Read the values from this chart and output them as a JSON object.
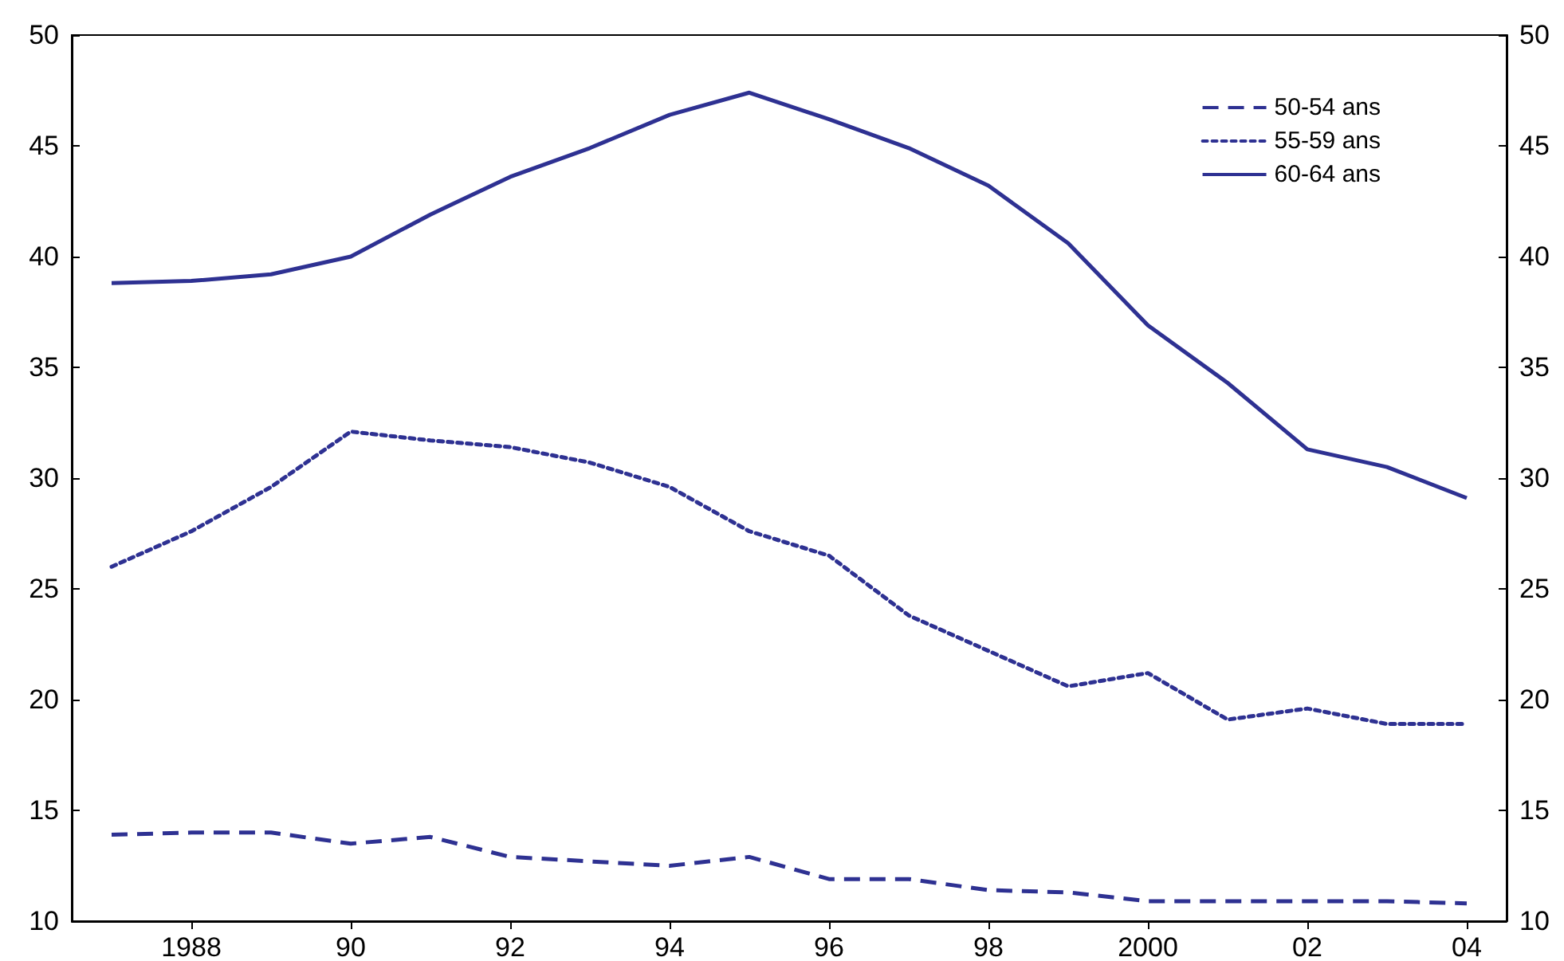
{
  "chart_data": {
    "type": "line",
    "x": [
      1987,
      1988,
      1989,
      1990,
      1991,
      1992,
      1993,
      1994,
      1995,
      1996,
      1997,
      1998,
      1999,
      2000,
      2001,
      2002,
      2003,
      2004
    ],
    "series": [
      {
        "name": "50-54 ans",
        "color": "#2e3192",
        "line_style": "dashed",
        "values": [
          13.9,
          14.0,
          14.0,
          13.5,
          13.8,
          12.9,
          12.7,
          12.5,
          12.9,
          11.9,
          11.9,
          11.4,
          11.3,
          10.9,
          10.9,
          10.9,
          10.9,
          10.8
        ]
      },
      {
        "name": "55-59 ans",
        "color": "#2e3192",
        "line_style": "dotted",
        "values": [
          26.0,
          27.6,
          29.6,
          32.1,
          31.7,
          31.4,
          30.7,
          29.6,
          27.6,
          26.5,
          23.8,
          22.2,
          20.6,
          21.2,
          19.1,
          19.6,
          18.9,
          18.9
        ]
      },
      {
        "name": "60-64 ans",
        "color": "#2e3192",
        "line_style": "solid",
        "values": [
          38.8,
          38.9,
          39.2,
          40.0,
          41.9,
          43.6,
          44.9,
          46.4,
          47.4,
          46.2,
          44.9,
          43.2,
          40.6,
          36.9,
          34.3,
          31.3,
          30.5,
          29.1
        ]
      }
    ],
    "xlim": [
      1986.5,
      2004.5
    ],
    "xticks": [
      {
        "value": 1988,
        "label": "1988"
      },
      {
        "value": 1990,
        "label": "90"
      },
      {
        "value": 1992,
        "label": "92"
      },
      {
        "value": 1994,
        "label": "94"
      },
      {
        "value": 1996,
        "label": "96"
      },
      {
        "value": 1998,
        "label": "98"
      },
      {
        "value": 2000,
        "label": "2000"
      },
      {
        "value": 2002,
        "label": "02"
      },
      {
        "value": 2004,
        "label": "04"
      }
    ],
    "ylim": [
      10,
      50
    ],
    "yticks": [
      10,
      15,
      20,
      25,
      30,
      35,
      40,
      45,
      50
    ],
    "y2lim": [
      10,
      50
    ],
    "y2ticks": [
      10,
      15,
      20,
      25,
      30,
      35,
      40,
      45,
      50
    ],
    "grid": false,
    "legend": "top right",
    "marker": "none"
  }
}
